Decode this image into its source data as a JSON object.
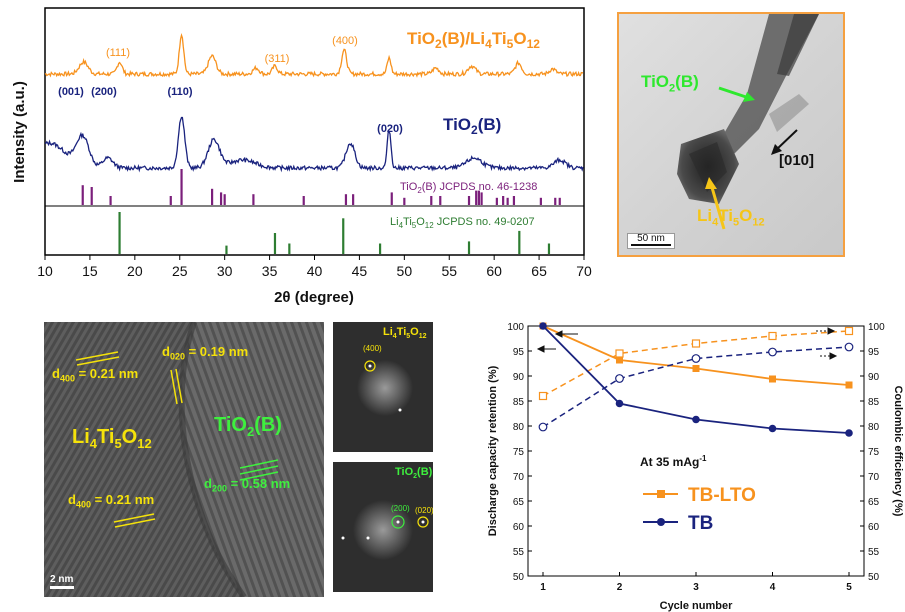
{
  "xrd": {
    "ylabel": "Intensity (a.u.)",
    "xlabel": "2θ (degree)",
    "xticks": [
      10,
      15,
      20,
      25,
      30,
      35,
      40,
      45,
      50,
      55,
      60,
      65,
      70
    ],
    "xlim": [
      10,
      70
    ],
    "sample_a": {
      "name_main": "TiO",
      "name_sub1": "2",
      "name_mid": "(B)/Li",
      "name_sub2": "4",
      "name_mid2": "Ti",
      "name_sub3": "5",
      "name_mid3": "O",
      "name_sub4": "12",
      "color": "#f7921e"
    },
    "sample_b": {
      "name_main": "TiO",
      "name_sub1": "2",
      "name_tail": "(B)",
      "color": "#1a237e"
    },
    "peaks_a": [
      {
        "label": "(111)",
        "two_theta": 18.3
      },
      {
        "label": "(311)",
        "two_theta": 35.6
      },
      {
        "label": "(400)",
        "two_theta": 43.3
      }
    ],
    "peaks_b": [
      {
        "label": "(001)",
        "two_theta": 14.0
      },
      {
        "label": "(200)",
        "two_theta": 17.5
      },
      {
        "label": "(110)",
        "two_theta": 25.2
      },
      {
        "label": "(020)",
        "two_theta": 48.3
      }
    ],
    "ref_tb": {
      "text_pre": "TiO",
      "text_sub": "2",
      "text_post": "(B) JCPDS no. 46-1238",
      "color": "#7b1f7b",
      "lines": [
        [
          14.2,
          0.55
        ],
        [
          15.2,
          0.5
        ],
        [
          17.3,
          0.25
        ],
        [
          24.0,
          0.25
        ],
        [
          25.2,
          1.0
        ],
        [
          28.6,
          0.45
        ],
        [
          29.6,
          0.35
        ],
        [
          30.0,
          0.3
        ],
        [
          33.2,
          0.3
        ],
        [
          38.8,
          0.25
        ],
        [
          43.5,
          0.3
        ],
        [
          44.3,
          0.3
        ],
        [
          48.6,
          0.35
        ],
        [
          50.0,
          0.2
        ],
        [
          53.0,
          0.25
        ],
        [
          54.0,
          0.25
        ],
        [
          57.2,
          0.25
        ],
        [
          58.0,
          0.4
        ],
        [
          58.3,
          0.4
        ],
        [
          58.6,
          0.35
        ],
        [
          60.3,
          0.2
        ],
        [
          61.0,
          0.25
        ],
        [
          61.5,
          0.2
        ],
        [
          62.2,
          0.25
        ],
        [
          65.2,
          0.2
        ],
        [
          66.8,
          0.2
        ],
        [
          67.3,
          0.2
        ]
      ]
    },
    "ref_lto": {
      "text_pre": "Li",
      "text_sub1": "4",
      "text_mid": "Ti",
      "text_sub2": "5",
      "text_mid2": "O",
      "text_sub3": "12",
      "text_post": "  JCPDS no. 49-0207",
      "color": "#2e7d32",
      "lines": [
        [
          18.3,
          1.0
        ],
        [
          30.2,
          0.2
        ],
        [
          35.6,
          0.5
        ],
        [
          37.2,
          0.25
        ],
        [
          43.2,
          0.85
        ],
        [
          47.3,
          0.25
        ],
        [
          57.2,
          0.3
        ],
        [
          62.8,
          0.55
        ],
        [
          66.1,
          0.25
        ]
      ]
    }
  },
  "tem": {
    "label_tb_pre": "TiO",
    "label_tb_sub": "2",
    "label_tb_post": "(B)",
    "label_lto_pre": "Li",
    "label_lto_sub1": "4",
    "label_lto_mid": "Ti",
    "label_lto_sub2": "5",
    "label_lto_mid2": "O",
    "label_lto_sub3": "12",
    "direction": "[010]",
    "scalebar": "50 nm"
  },
  "hrtem": {
    "d400_top_pre": "d",
    "d400_top_sub": "400",
    "d400_top_post": " = 0.21 nm",
    "d020_pre": "d",
    "d020_sub": "020",
    "d020_post": " = 0.19 nm",
    "phase_tb_pre": "TiO",
    "phase_tb_sub": "2",
    "phase_tb_post": "(B)",
    "phase_lto_pre": "Li",
    "phase_lto_sub1": "4",
    "phase_lto_mid": "Ti",
    "phase_lto_sub2": "5",
    "phase_lto_mid2": "O",
    "phase_lto_sub3": "12",
    "d400_bot_pre": "d",
    "d400_bot_sub": "400",
    "d400_bot_post": " = 0.21 nm",
    "d200_pre": "d",
    "d200_sub": "200",
    "d200_post": " = 0.58 nm",
    "scalebar": "2 nm"
  },
  "fft": {
    "lto_title_pre": "Li",
    "lto_title_sub1": "4",
    "lto_title_mid": "Ti",
    "lto_title_sub2": "5",
    "lto_title_mid2": "O",
    "lto_title_sub3": "12",
    "lto_spot": "(400)",
    "tb_title_pre": "TiO",
    "tb_title_sub": "2",
    "tb_title_post": "(B)",
    "tb_spot1": "(200)",
    "tb_spot2": "(020)"
  },
  "chart_data": {
    "type": "line",
    "x": [
      1,
      2,
      3,
      4,
      5
    ],
    "xlabel": "Cycle number",
    "ylabel_left": "Discharge capacity retention (%)",
    "ylabel_right": "Coulombic efficiency (%)",
    "ylim": [
      50,
      100
    ],
    "yticks": [
      50,
      55,
      60,
      65,
      70,
      75,
      80,
      85,
      90,
      95,
      100
    ],
    "annotation": "At 35 mAg",
    "annotation_sup": "-1",
    "series": [
      {
        "name": "TB-LTO",
        "color": "#f7921e",
        "retention": [
          100,
          93.2,
          91.5,
          89.4,
          88.2
        ],
        "efficiency": [
          86.0,
          94.5,
          96.5,
          98.0,
          99.0
        ]
      },
      {
        "name": "TB",
        "color": "#1a237e",
        "retention": [
          100,
          84.5,
          81.3,
          79.5,
          78.6
        ],
        "efficiency": [
          79.8,
          89.5,
          93.5,
          94.8,
          95.8
        ]
      }
    ]
  }
}
